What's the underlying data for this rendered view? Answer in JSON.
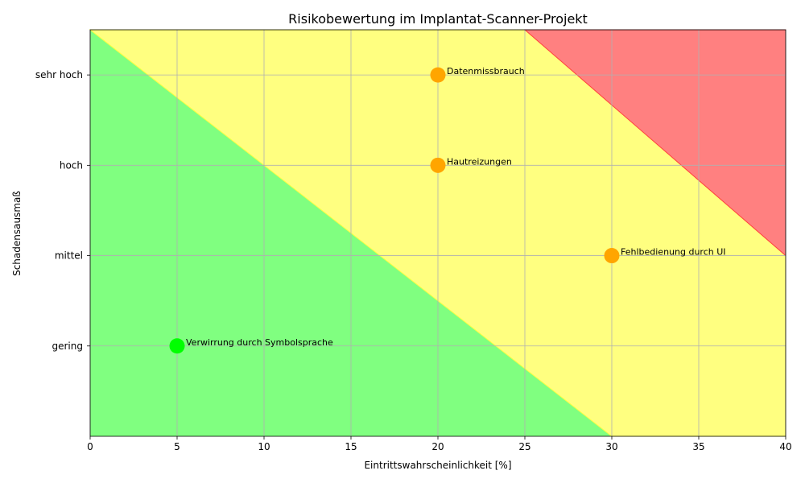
{
  "chart_data": {
    "type": "scatter",
    "title": "Risikobewertung im Implantat-Scanner-Projekt",
    "xlabel": "Eintrittswahrscheinlichkeit [%]",
    "ylabel": "Schadensausmaß",
    "xlim": [
      0,
      40
    ],
    "ylim": [
      0,
      4.5
    ],
    "x_ticks": [
      0,
      5,
      10,
      15,
      20,
      25,
      30,
      35,
      40
    ],
    "y_ticks": [
      {
        "value": 1,
        "label": "gering"
      },
      {
        "value": 2,
        "label": "mittel"
      },
      {
        "value": 3,
        "label": "hoch"
      },
      {
        "value": 4,
        "label": "sehr hoch"
      }
    ],
    "grid": true,
    "zones": [
      {
        "name": "green",
        "color": "#80ff80",
        "points": [
          [
            0,
            0
          ],
          [
            0,
            4.5
          ],
          [
            30,
            0
          ]
        ]
      },
      {
        "name": "yellow",
        "color": "#ffff80",
        "points": [
          [
            0,
            4.5
          ],
          [
            25,
            4.5
          ],
          [
            40,
            2
          ],
          [
            40,
            0
          ],
          [
            30,
            0
          ]
        ]
      },
      {
        "name": "red",
        "color": "#ff8080",
        "points": [
          [
            25,
            4.5
          ],
          [
            40,
            4.5
          ],
          [
            40,
            2
          ]
        ]
      }
    ],
    "points": [
      {
        "label": "Datenmissbrauch",
        "x": 20,
        "y": 4,
        "color": "#ffa500"
      },
      {
        "label": "Hautreizungen",
        "x": 20,
        "y": 3,
        "color": "#ffa500"
      },
      {
        "label": "Fehlbedienung durch UI",
        "x": 30,
        "y": 2,
        "color": "#ffa500"
      },
      {
        "label": "Verwirrung durch Symbolsprache",
        "x": 5,
        "y": 1,
        "color": "#00ff00"
      }
    ]
  }
}
